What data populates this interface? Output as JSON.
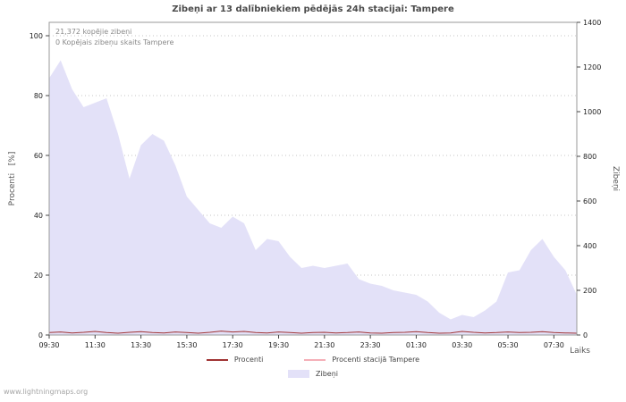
{
  "annotations": {
    "total": "21,372 kopējie zibeņi",
    "station_total": "0 Kopējais zibeņu skaits Tampere"
  },
  "legend": [
    {
      "label": "Procenti",
      "color": "#a03333",
      "type": "line"
    },
    {
      "label": "Procenti stacijā Tampere",
      "color": "#f5afb8",
      "type": "line"
    },
    {
      "label": "Zibeņi",
      "color": "#e3e1f8",
      "type": "area"
    }
  ],
  "watermark": "www.lightningmaps.org",
  "chart_data": {
    "type": "area",
    "title": "Zibeņi ar 13 dalībniekiem pēdējās 24h stacijai: Tampere",
    "xlabel": "Laiks",
    "x": [
      "09:30",
      "10:00",
      "10:30",
      "11:00",
      "11:30",
      "12:00",
      "12:30",
      "13:00",
      "13:30",
      "14:00",
      "14:30",
      "15:00",
      "15:30",
      "16:00",
      "16:30",
      "17:00",
      "17:30",
      "18:00",
      "18:30",
      "19:00",
      "19:30",
      "20:00",
      "20:30",
      "21:00",
      "21:30",
      "22:00",
      "22:30",
      "23:00",
      "23:30",
      "00:00",
      "00:30",
      "01:00",
      "01:30",
      "02:00",
      "02:30",
      "03:00",
      "03:30",
      "04:00",
      "04:30",
      "05:00",
      "05:30",
      "06:00",
      "06:30",
      "07:00",
      "07:30",
      "08:00",
      "08:30"
    ],
    "x_tick_step": 4,
    "series": [
      {
        "name": "Zibeņi",
        "axis": "right",
        "type": "area",
        "color": "#e3e1f8",
        "values": [
          1150,
          1230,
          1100,
          1020,
          1040,
          1060,
          900,
          700,
          850,
          900,
          870,
          760,
          620,
          560,
          500,
          480,
          530,
          500,
          380,
          430,
          420,
          350,
          300,
          310,
          300,
          310,
          320,
          250,
          230,
          220,
          200,
          190,
          180,
          150,
          100,
          70,
          90,
          80,
          110,
          150,
          280,
          290,
          380,
          430,
          350,
          290,
          180
        ]
      },
      {
        "name": "Procenti",
        "axis": "left",
        "type": "line",
        "color": "#a03333",
        "values": [
          0.8,
          1.0,
          0.7,
          0.9,
          1.2,
          0.8,
          0.6,
          0.9,
          1.1,
          0.8,
          0.7,
          1.0,
          0.8,
          0.6,
          0.9,
          1.3,
          1.0,
          1.2,
          0.8,
          0.7,
          1.0,
          0.8,
          0.6,
          0.8,
          0.9,
          0.7,
          0.8,
          1.0,
          0.7,
          0.6,
          0.8,
          0.9,
          1.1,
          0.8,
          0.6,
          0.7,
          1.2,
          0.9,
          0.7,
          0.8,
          1.0,
          0.8,
          0.9,
          1.1,
          0.8,
          0.7,
          0.6
        ]
      },
      {
        "name": "Procenti stacijā Tampere",
        "axis": "left",
        "type": "line",
        "color": "#f5afb8",
        "values": [
          0,
          0,
          0,
          0,
          0,
          0,
          0,
          0,
          0,
          0,
          0,
          0,
          0,
          0,
          0,
          0,
          0,
          0,
          0,
          0,
          0,
          0,
          0,
          0,
          0,
          0,
          0,
          0,
          0,
          0,
          0,
          0,
          0,
          0,
          0,
          0,
          0,
          0,
          0,
          0,
          0,
          0,
          0,
          0,
          0,
          0,
          0
        ]
      }
    ],
    "left_axis": {
      "label": "Procenti   [%]",
      "min": 0,
      "max": 100,
      "ticks": [
        0,
        20,
        40,
        60,
        80,
        100
      ]
    },
    "right_axis": {
      "label": "Zibeņi",
      "min": 0,
      "max": 1400,
      "ticks": [
        0,
        200,
        400,
        600,
        800,
        1000,
        1200,
        1400
      ]
    },
    "grid": true,
    "legend_position": "bottom"
  }
}
